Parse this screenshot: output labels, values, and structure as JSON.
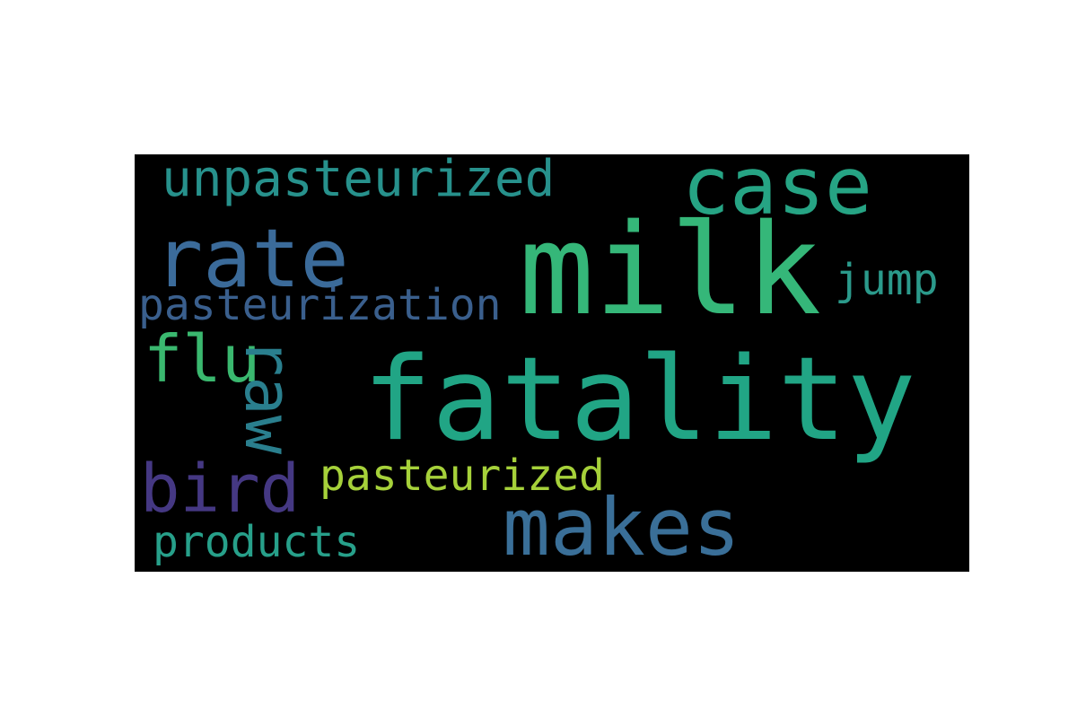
{
  "words": {
    "milk": {
      "text": "milk",
      "color": "#35b779"
    },
    "fatality": {
      "text": "fatality",
      "color": "#21a585"
    },
    "rate": {
      "text": "rate",
      "color": "#3b6b9a"
    },
    "case": {
      "text": "case",
      "color": "#26a484"
    },
    "makes": {
      "text": "makes",
      "color": "#3a6f98"
    },
    "unpasteurized": {
      "text": "unpasteurized",
      "color": "#27918c"
    },
    "pasteurization": {
      "text": "pasteurization",
      "color": "#3a5f8d"
    },
    "flu": {
      "text": "flu",
      "color": "#3ab86f"
    },
    "raw": {
      "text": "raw",
      "color": "#2a7f8e"
    },
    "bird": {
      "text": "bird",
      "color": "#453883"
    },
    "pasteurized": {
      "text": "pasteurized",
      "color": "#a6d13a"
    },
    "products": {
      "text": "products",
      "color": "#27a08a"
    },
    "jump": {
      "text": "jump",
      "color": "#2b9a8b"
    }
  }
}
